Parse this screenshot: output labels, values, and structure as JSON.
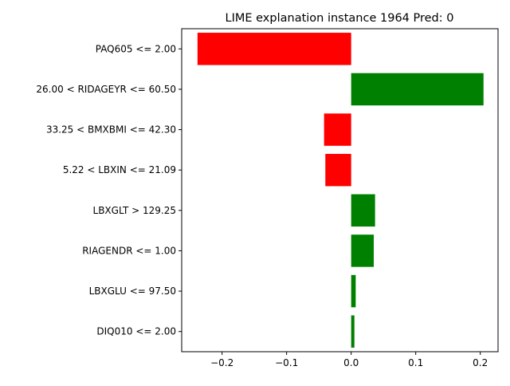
{
  "chart_data": {
    "type": "bar",
    "orientation": "horizontal",
    "title": "LIME explanation instance 1964 Pred: 0",
    "xlabel": "",
    "ylabel": "",
    "categories": [
      "PAQ605 <= 2.00",
      "26.00 < RIDAGEYR <= 60.50",
      "33.25 < BMXBMI <= 42.30",
      "5.22 < LBXIN <= 21.09",
      "LBXGLT > 129.25",
      "RIAGENDR <= 1.00",
      "LBXGLU <= 97.50",
      "DIQ010 <= 2.00"
    ],
    "values": [
      -0.238,
      0.205,
      -0.042,
      -0.04,
      0.037,
      0.035,
      0.007,
      0.005
    ],
    "xlim": [
      -0.2625,
      0.2275
    ],
    "xticks": [
      -0.2,
      -0.1,
      0.0,
      0.1,
      0.2
    ],
    "xtick_labels": [
      "−0.2",
      "−0.1",
      "0.0",
      "0.1",
      "0.2"
    ],
    "grid": false,
    "colors": {
      "positive": "#008000",
      "negative": "#ff0000",
      "axis": "#000000",
      "text": "#000000"
    }
  }
}
